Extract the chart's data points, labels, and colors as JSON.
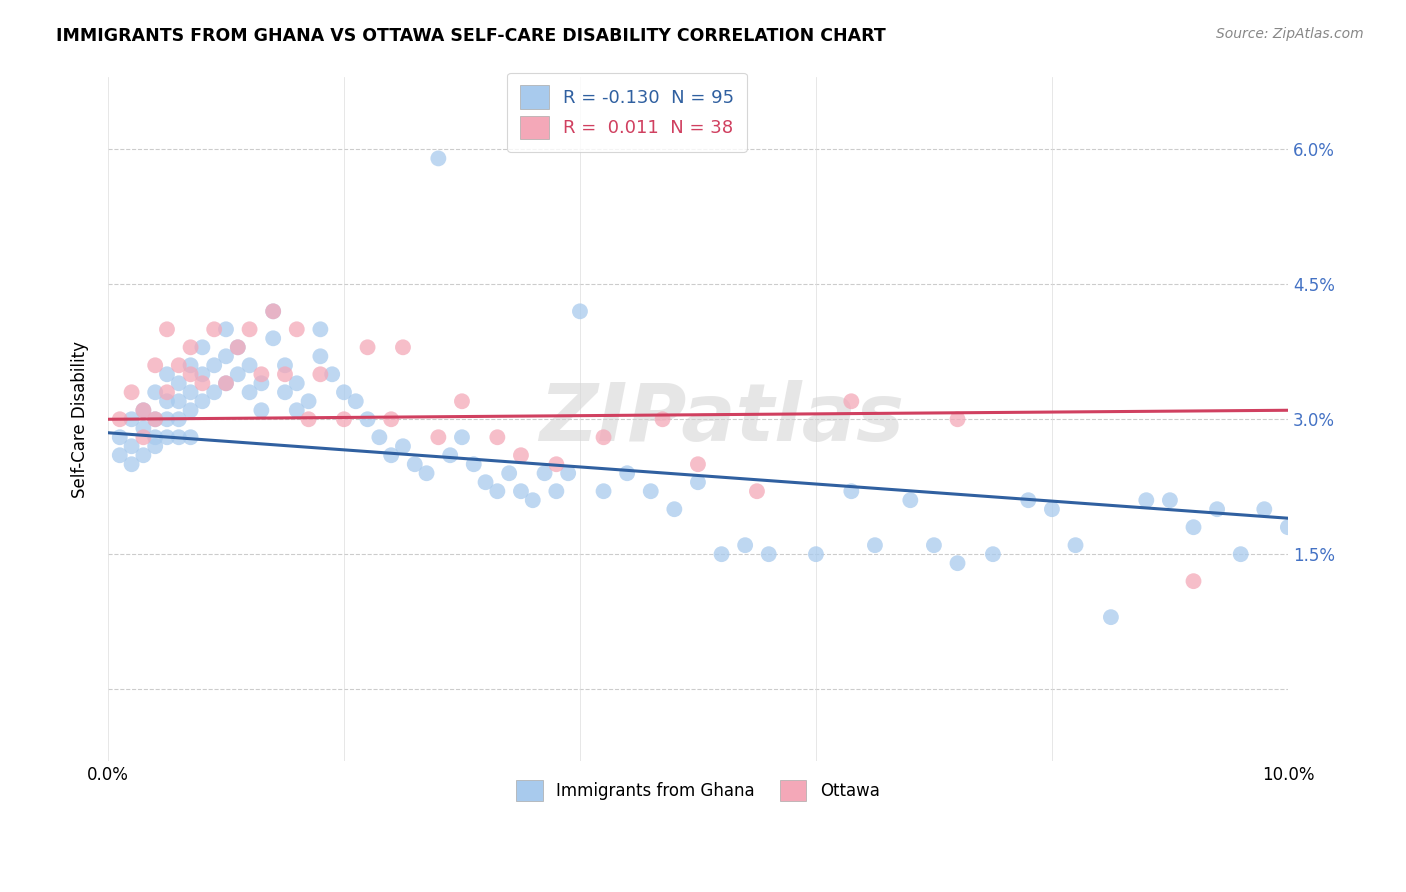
{
  "title": "IMMIGRANTS FROM GHANA VS OTTAWA SELF-CARE DISABILITY CORRELATION CHART",
  "source": "Source: ZipAtlas.com",
  "ylabel": "Self-Care Disability",
  "xlim": [
    0.0,
    0.1
  ],
  "ylim": [
    -0.008,
    0.068
  ],
  "blue_color": "#A8CAED",
  "pink_color": "#F4A8B8",
  "blue_line_color": "#3060A0",
  "pink_line_color": "#D04060",
  "legend_R_blue": "-0.130",
  "legend_N_blue": "95",
  "legend_R_pink": "0.011",
  "legend_N_pink": "38",
  "watermark": "ZIPatlas",
  "blue_line_x0": 0.0,
  "blue_line_y0": 0.0285,
  "blue_line_x1": 0.1,
  "blue_line_y1": 0.019,
  "pink_line_x0": 0.0,
  "pink_line_y0": 0.03,
  "pink_line_x1": 0.1,
  "pink_line_y1": 0.031,
  "blue_x": [
    0.001,
    0.001,
    0.002,
    0.002,
    0.002,
    0.003,
    0.003,
    0.003,
    0.004,
    0.004,
    0.004,
    0.004,
    0.005,
    0.005,
    0.005,
    0.005,
    0.006,
    0.006,
    0.006,
    0.006,
    0.007,
    0.007,
    0.007,
    0.007,
    0.008,
    0.008,
    0.008,
    0.009,
    0.009,
    0.01,
    0.01,
    0.01,
    0.011,
    0.011,
    0.012,
    0.012,
    0.013,
    0.013,
    0.014,
    0.014,
    0.015,
    0.015,
    0.016,
    0.016,
    0.017,
    0.018,
    0.018,
    0.019,
    0.02,
    0.021,
    0.022,
    0.023,
    0.024,
    0.025,
    0.026,
    0.027,
    0.028,
    0.029,
    0.03,
    0.031,
    0.032,
    0.033,
    0.034,
    0.035,
    0.036,
    0.037,
    0.038,
    0.039,
    0.04,
    0.042,
    0.044,
    0.046,
    0.048,
    0.05,
    0.052,
    0.054,
    0.056,
    0.06,
    0.063,
    0.065,
    0.068,
    0.07,
    0.072,
    0.075,
    0.078,
    0.08,
    0.082,
    0.085,
    0.088,
    0.09,
    0.092,
    0.094,
    0.096,
    0.098,
    0.1
  ],
  "blue_y": [
    0.028,
    0.026,
    0.03,
    0.027,
    0.025,
    0.031,
    0.029,
    0.026,
    0.033,
    0.03,
    0.028,
    0.027,
    0.035,
    0.032,
    0.03,
    0.028,
    0.034,
    0.032,
    0.03,
    0.028,
    0.036,
    0.033,
    0.031,
    0.028,
    0.038,
    0.035,
    0.032,
    0.036,
    0.033,
    0.04,
    0.037,
    0.034,
    0.038,
    0.035,
    0.036,
    0.033,
    0.034,
    0.031,
    0.042,
    0.039,
    0.036,
    0.033,
    0.034,
    0.031,
    0.032,
    0.04,
    0.037,
    0.035,
    0.033,
    0.032,
    0.03,
    0.028,
    0.026,
    0.027,
    0.025,
    0.024,
    0.059,
    0.026,
    0.028,
    0.025,
    0.023,
    0.022,
    0.024,
    0.022,
    0.021,
    0.024,
    0.022,
    0.024,
    0.042,
    0.022,
    0.024,
    0.022,
    0.02,
    0.023,
    0.015,
    0.016,
    0.015,
    0.015,
    0.022,
    0.016,
    0.021,
    0.016,
    0.014,
    0.015,
    0.021,
    0.02,
    0.016,
    0.008,
    0.021,
    0.021,
    0.018,
    0.02,
    0.015,
    0.02,
    0.018
  ],
  "pink_x": [
    0.001,
    0.002,
    0.003,
    0.003,
    0.004,
    0.004,
    0.005,
    0.005,
    0.006,
    0.007,
    0.007,
    0.008,
    0.009,
    0.01,
    0.011,
    0.012,
    0.013,
    0.014,
    0.015,
    0.016,
    0.017,
    0.018,
    0.02,
    0.022,
    0.024,
    0.025,
    0.028,
    0.03,
    0.033,
    0.035,
    0.038,
    0.042,
    0.047,
    0.05,
    0.055,
    0.063,
    0.072,
    0.092
  ],
  "pink_y": [
    0.03,
    0.033,
    0.028,
    0.031,
    0.036,
    0.03,
    0.033,
    0.04,
    0.036,
    0.038,
    0.035,
    0.034,
    0.04,
    0.034,
    0.038,
    0.04,
    0.035,
    0.042,
    0.035,
    0.04,
    0.03,
    0.035,
    0.03,
    0.038,
    0.03,
    0.038,
    0.028,
    0.032,
    0.028,
    0.026,
    0.025,
    0.028,
    0.03,
    0.025,
    0.022,
    0.032,
    0.03,
    0.012
  ]
}
